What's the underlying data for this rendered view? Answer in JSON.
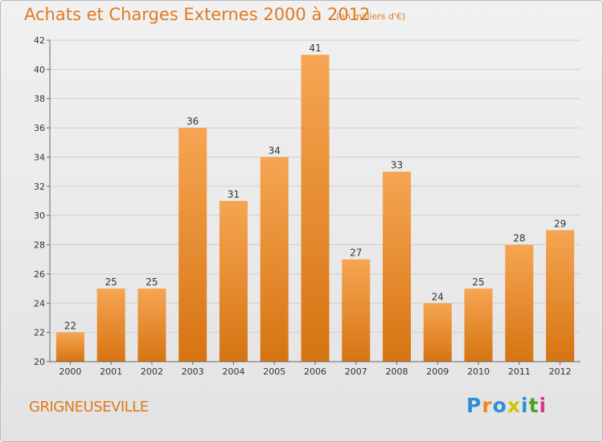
{
  "title": "Achats et Charges Externes 2000 à 2012",
  "subtitle": "(en milliers d'€)",
  "commune": "GRIGNEUSEVILLE",
  "logo": {
    "text": "Proxiti",
    "letters": [
      "P",
      "r",
      "o",
      "x",
      "i",
      "t",
      "i"
    ],
    "colors": [
      "#2b8fd6",
      "#f18a1a",
      "#2b8fd6",
      "#c8c800",
      "#2b8fd6",
      "#4aa02c",
      "#d43a8a"
    ]
  },
  "colors": {
    "accent": "#e07a1e",
    "bar_top": "#f6a552",
    "bar_bottom": "#d67412",
    "grid": "#d0d0d0"
  },
  "chart_data": {
    "type": "bar",
    "categories": [
      "2000",
      "2001",
      "2002",
      "2003",
      "2004",
      "2005",
      "2006",
      "2007",
      "2008",
      "2009",
      "2010",
      "2011",
      "2012"
    ],
    "values": [
      22,
      25,
      25,
      36,
      31,
      34,
      41,
      27,
      33,
      24,
      25,
      28,
      29
    ],
    "ylim": [
      20,
      42
    ],
    "yticks": [
      20,
      22,
      24,
      26,
      28,
      30,
      32,
      34,
      36,
      38,
      40,
      42
    ],
    "grid": true,
    "data_labels": true
  }
}
